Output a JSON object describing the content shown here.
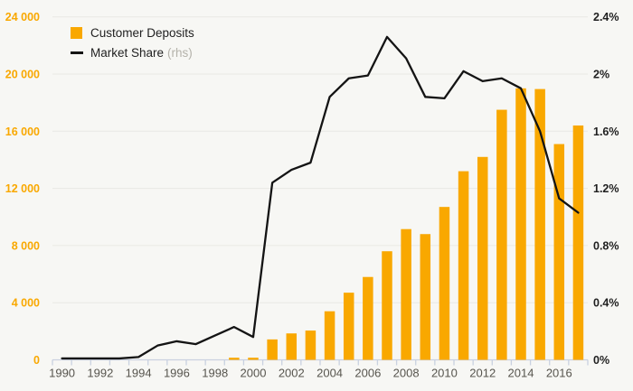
{
  "legend": {
    "deposits_label": "Customer Deposits",
    "market_share_label": "Market Share",
    "rhs_suffix": "(rhs)"
  },
  "chart_data": {
    "type": "bar+line",
    "categories": [
      "1990",
      "1991",
      "1992",
      "1993",
      "1994",
      "1995",
      "1996",
      "1997",
      "1998",
      "1999",
      "2000",
      "2001",
      "2002",
      "2003",
      "2004",
      "2005",
      "2006",
      "2007",
      "2008",
      "2009",
      "2010",
      "2011",
      "2012",
      "2013",
      "2014",
      "2015",
      "2016",
      "2017"
    ],
    "series": [
      {
        "name": "Customer Deposits",
        "type": "bar",
        "axis": "left",
        "color": "#F9A800",
        "values": [
          0,
          0,
          0,
          0,
          0,
          0,
          0,
          0,
          0,
          150,
          150,
          1430,
          1850,
          2050,
          3400,
          4700,
          5800,
          7600,
          9150,
          8800,
          10700,
          13200,
          14200,
          17500,
          19000,
          18950,
          15100,
          16400
        ]
      },
      {
        "name": "Market Share (rhs)",
        "type": "line",
        "axis": "right",
        "color": "#141414",
        "values": [
          0.01,
          0.01,
          0.01,
          0.01,
          0.02,
          0.1,
          0.13,
          0.11,
          0.17,
          0.23,
          0.16,
          1.24,
          1.33,
          1.38,
          1.84,
          1.97,
          1.99,
          2.26,
          2.11,
          1.84,
          1.83,
          2.02,
          1.95,
          1.97,
          1.9,
          1.6,
          1.13,
          1.03
        ]
      }
    ],
    "left_axis": {
      "min": 0,
      "max": 24000,
      "ticks": [
        0,
        4000,
        8000,
        12000,
        16000,
        20000,
        24000
      ],
      "labels": [
        "0",
        "4 000",
        "8 000",
        "12 000",
        "16 000",
        "20 000",
        "24 000"
      ],
      "label_color": "#F9A800"
    },
    "right_axis": {
      "min": 0,
      "max": 2.4,
      "ticks": [
        0,
        0.4,
        0.8,
        1.2,
        1.6,
        2.0,
        2.4
      ],
      "labels": [
        "0%",
        "0.4%",
        "0.8%",
        "1.2%",
        "1.6%",
        "2%",
        "2.4%"
      ],
      "label_color": "#1F1F1F"
    },
    "x_tick_labels": [
      "1990",
      "1992",
      "1994",
      "1996",
      "1998",
      "2000",
      "2002",
      "2004",
      "2006",
      "2008",
      "2010",
      "2012",
      "2014",
      "2016"
    ],
    "grid": true,
    "legend_position": "top-left",
    "colors": {
      "bar": "#F9A800",
      "line": "#141414",
      "left_labels": "#F9A800",
      "right_labels": "#1F1F1F",
      "x_labels": "#57554E",
      "gridline": "#E9E8E4",
      "axis": "#C9D1E0",
      "background": "#F7F7F4"
    }
  }
}
